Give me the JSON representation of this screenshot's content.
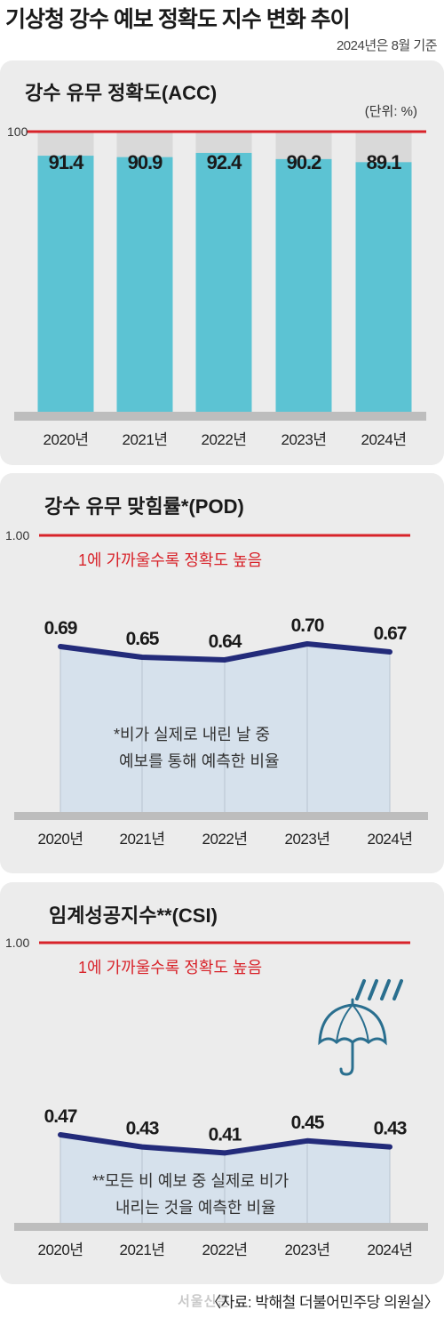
{
  "title": "기상청 강수 예보 정확도 지수 변화 추이",
  "subtitle": "2024년은 8월 기준",
  "source": "〈자료: 박해철 더불어민주당 의원실〉",
  "watermark": "서울신문",
  "colors": {
    "bar": "#5cc3d3",
    "bar_bg": "#d9d9d9",
    "line": "#232b7a",
    "area": "#d6e1ec",
    "reference": "#d8232a",
    "panel": "#ececec",
    "icon": "#2a6f8f"
  },
  "chart_data": [
    {
      "type": "bar",
      "title": "강수 유무 정확도(ACC)",
      "unit_note": "(단위: %)",
      "categories": [
        "2020년",
        "2021년",
        "2022년",
        "2023년",
        "2024년"
      ],
      "values": [
        91.4,
        90.9,
        92.4,
        90.2,
        89.1
      ],
      "value_labels": [
        "91.4",
        "90.9",
        "92.4",
        "90.2",
        "89.1"
      ],
      "reference_line": {
        "value": 100,
        "label": "100"
      },
      "ylim": [
        0,
        100
      ]
    },
    {
      "type": "line",
      "title": "강수 유무 맞힘률*(POD)",
      "categories": [
        "2020년",
        "2021년",
        "2022년",
        "2023년",
        "2024년"
      ],
      "values": [
        0.69,
        0.65,
        0.64,
        0.7,
        0.67
      ],
      "value_labels": [
        "0.69",
        "0.65",
        "0.64",
        "0.70",
        "0.67"
      ],
      "reference_line": {
        "value": 1.0,
        "label": "1.00"
      },
      "reference_note": "1에 가까울수록 정확도 높음",
      "footnote": [
        "*비가 실제로 내린 날 중",
        "예보를 통해 예측한 비율"
      ],
      "ylim": [
        0,
        1
      ]
    },
    {
      "type": "line",
      "title": "임계성공지수**(CSI)",
      "categories": [
        "2020년",
        "2021년",
        "2022년",
        "2023년",
        "2024년"
      ],
      "values": [
        0.47,
        0.43,
        0.41,
        0.45,
        0.43
      ],
      "value_labels": [
        "0.47",
        "0.43",
        "0.41",
        "0.45",
        "0.43"
      ],
      "reference_line": {
        "value": 1.0,
        "label": "1.00"
      },
      "reference_note": "1에 가까울수록 정확도 높음",
      "footnote": [
        "**모든 비 예보 중 실제로 비가",
        "내리는 것을 예측한 비율"
      ],
      "icon": "umbrella-rain-icon",
      "ylim": [
        0,
        1
      ]
    }
  ]
}
